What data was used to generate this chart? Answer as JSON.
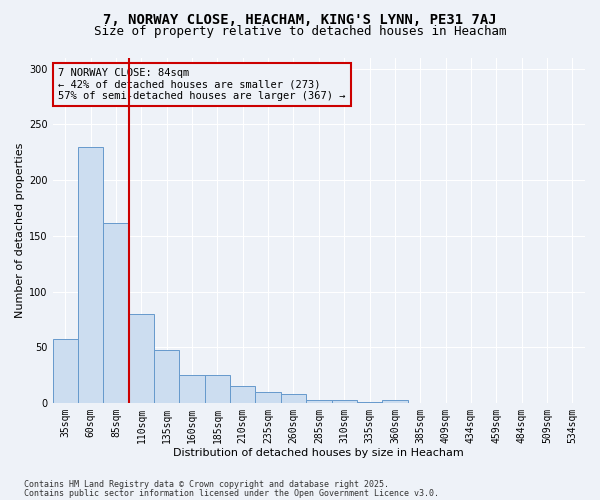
{
  "title_line1": "7, NORWAY CLOSE, HEACHAM, KING'S LYNN, PE31 7AJ",
  "title_line2": "Size of property relative to detached houses in Heacham",
  "xlabel": "Distribution of detached houses by size in Heacham",
  "ylabel": "Number of detached properties",
  "categories": [
    "35sqm",
    "60sqm",
    "85sqm",
    "110sqm",
    "135sqm",
    "160sqm",
    "185sqm",
    "210sqm",
    "235sqm",
    "260sqm",
    "285sqm",
    "310sqm",
    "335sqm",
    "360sqm",
    "385sqm",
    "409sqm",
    "434sqm",
    "459sqm",
    "484sqm",
    "509sqm",
    "534sqm"
  ],
  "values": [
    58,
    230,
    162,
    80,
    48,
    25,
    25,
    15,
    10,
    8,
    3,
    3,
    1,
    3,
    0,
    0,
    0,
    0,
    0,
    0,
    0
  ],
  "bar_color": "#ccddf0",
  "bar_edge_color": "#6699cc",
  "annotation_label": "7 NORWAY CLOSE: 84sqm",
  "annotation_line1": "← 42% of detached houses are smaller (273)",
  "annotation_line2": "57% of semi-detached houses are larger (367) →",
  "vline_x": 2.5,
  "vline_color": "#cc0000",
  "annotation_box_color": "#cc0000",
  "footnote_line1": "Contains HM Land Registry data © Crown copyright and database right 2025.",
  "footnote_line2": "Contains public sector information licensed under the Open Government Licence v3.0.",
  "ylim": [
    0,
    310
  ],
  "yticks": [
    0,
    50,
    100,
    150,
    200,
    250,
    300
  ],
  "background_color": "#eef2f8",
  "grid_color": "#ffffff",
  "title_fontsize": 10,
  "subtitle_fontsize": 9,
  "axis_label_fontsize": 8,
  "tick_fontsize": 7,
  "annotation_fontsize": 7.5
}
